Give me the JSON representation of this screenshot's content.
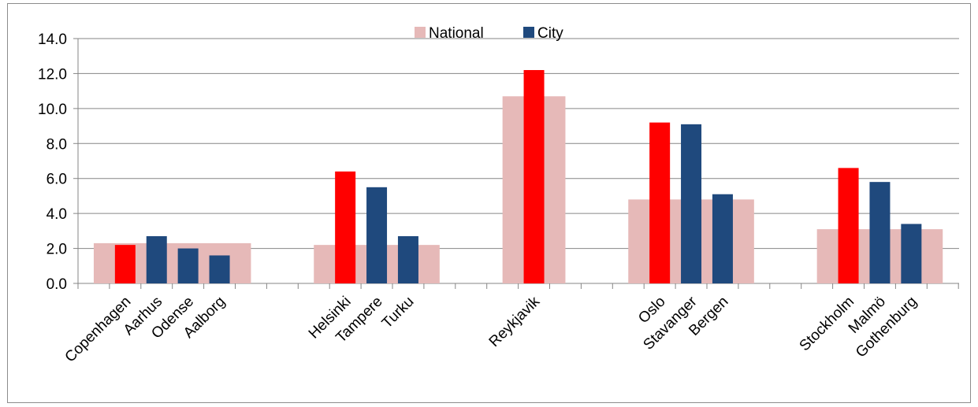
{
  "chart_data": {
    "type": "bar",
    "title": "",
    "xlabel": "",
    "ylabel": "",
    "ylim": [
      0,
      14
    ],
    "yticks": [
      "0.0",
      "2.0",
      "4.0",
      "6.0",
      "8.0",
      "10.0",
      "12.0",
      "14.0"
    ],
    "grid": true,
    "legend": {
      "position": "top-center",
      "entries": [
        "National",
        "City"
      ]
    },
    "colors": {
      "National": "#e6b9b8",
      "City": "#1f497d",
      "Capital": "#ff0000"
    },
    "groups": [
      {
        "national": 2.3,
        "cities": [
          {
            "name": "Copenhagen",
            "value": 2.2,
            "capital": true
          },
          {
            "name": "Aarhus",
            "value": 2.7,
            "capital": false
          },
          {
            "name": "Odense",
            "value": 2.0,
            "capital": false
          },
          {
            "name": "Aalborg",
            "value": 1.6,
            "capital": false
          }
        ]
      },
      {
        "national": 2.2,
        "cities": [
          {
            "name": "Helsinki",
            "value": 6.4,
            "capital": true
          },
          {
            "name": "Tampere",
            "value": 5.5,
            "capital": false
          },
          {
            "name": "Turku",
            "value": 2.7,
            "capital": false
          }
        ]
      },
      {
        "national": 10.7,
        "cities": [
          {
            "name": "Reykjavik",
            "value": 12.2,
            "capital": true
          }
        ]
      },
      {
        "national": 4.8,
        "cities": [
          {
            "name": "Oslo",
            "value": 9.2,
            "capital": true
          },
          {
            "name": "Stavanger",
            "value": 9.1,
            "capital": false
          },
          {
            "name": "Bergen",
            "value": 5.1,
            "capital": false
          }
        ]
      },
      {
        "national": 3.1,
        "cities": [
          {
            "name": "Stockholm",
            "value": 6.6,
            "capital": true
          },
          {
            "name": "Malmö",
            "value": 5.8,
            "capital": false
          },
          {
            "name": "Gothenburg",
            "value": 3.4,
            "capital": false
          }
        ]
      }
    ]
  }
}
